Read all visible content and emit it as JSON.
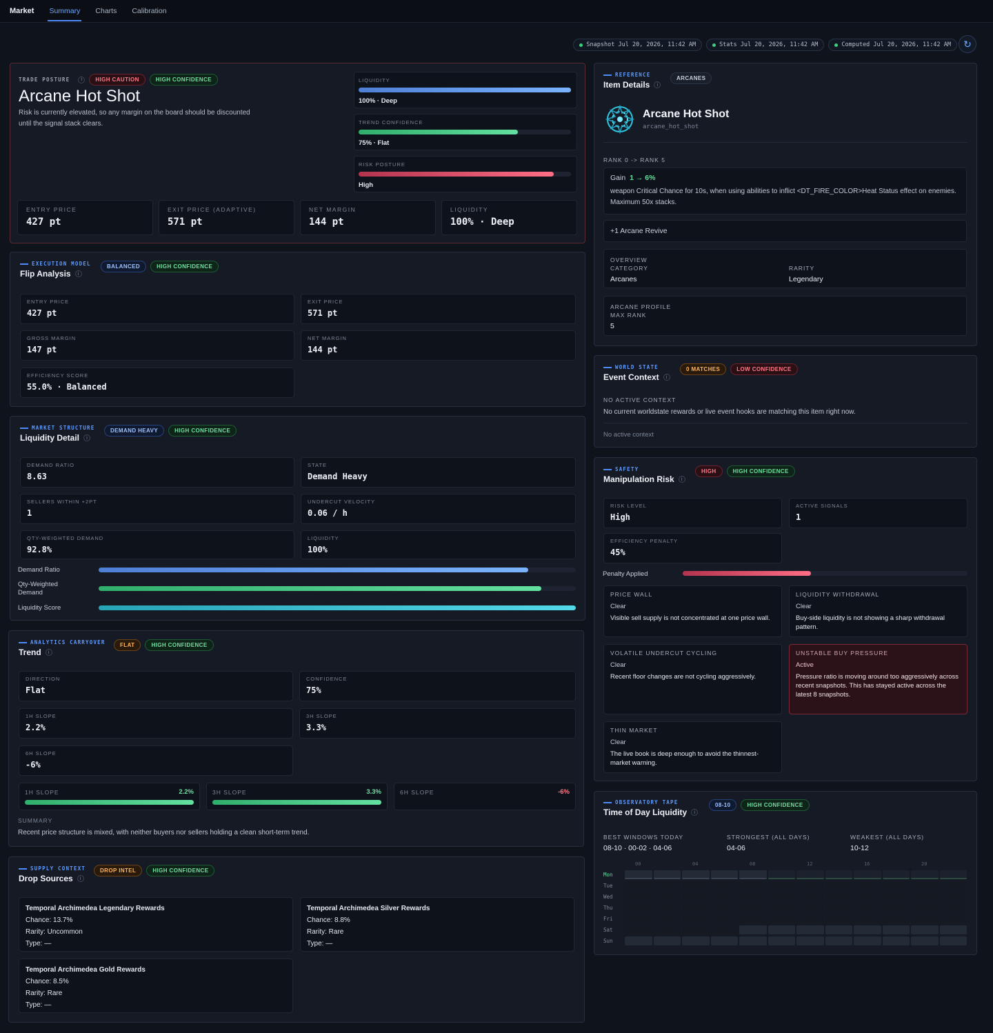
{
  "nav": {
    "brand": "Market",
    "tabs": [
      "Summary",
      "Charts",
      "Calibration"
    ]
  },
  "stamps": [
    "Snapshot Jul 20, 2026, 11:42 AM",
    "Stats Jul 20, 2026, 11:42 AM",
    "Computed Jul 20, 2026, 11:42 AM"
  ],
  "hero": {
    "eyebrow": "TRADE POSTURE",
    "badge1": "HIGH CAUTION",
    "badge2": "HIGH CONFIDENCE",
    "title": "Arcane Hot Shot",
    "desc1": "Risk is currently elevated, so any margin on the board should be discounted",
    "desc2": "until the signal stack clears.",
    "meters": [
      {
        "label": "LIQUIDITY",
        "value": "100% · Deep",
        "fraction": 1.0
      },
      {
        "label": "TREND CONFIDENCE",
        "value": "75% · Flat",
        "fraction": 0.75
      },
      {
        "label": "RISK POSTURE",
        "value": "High",
        "fraction": 0.92
      }
    ],
    "stats": [
      {
        "label": "ENTRY PRICE",
        "value": "427 pt"
      },
      {
        "label": "EXIT PRICE (ADAPTIVE)",
        "value": "571 pt"
      },
      {
        "label": "NET MARGIN",
        "value": "144 pt"
      },
      {
        "label": "LIQUIDITY",
        "value": "100% · Deep"
      }
    ]
  },
  "flip": {
    "eyebrow": "EXECUTION MODEL",
    "title": "Flip Analysis",
    "badge1": "BALANCED",
    "badge2": "HIGH CONFIDENCE",
    "cells": [
      {
        "label": "ENTRY PRICE",
        "value": "427 pt"
      },
      {
        "label": "EXIT PRICE",
        "value": "571 pt"
      },
      {
        "label": "GROSS MARGIN",
        "value": "147 pt"
      },
      {
        "label": "NET MARGIN",
        "value": "144 pt"
      },
      {
        "label": "EFFICIENCY SCORE",
        "value": "55.0% · Balanced"
      }
    ]
  },
  "liq": {
    "eyebrow": "MARKET STRUCTURE",
    "title": "Liquidity Detail",
    "badge1": "DEMAND HEAVY",
    "badge2": "HIGH CONFIDENCE",
    "cells": [
      {
        "label": "DEMAND RATIO",
        "value": "8.63"
      },
      {
        "label": "STATE",
        "value": "Demand Heavy"
      },
      {
        "label": "SELLERS WITHIN +2PT",
        "value": "1"
      },
      {
        "label": "UNDERCUT VELOCITY",
        "value": "0.06 / h"
      },
      {
        "label": "QTY-WEIGHTED DEMAND",
        "value": "92.8%"
      },
      {
        "label": "LIQUIDITY",
        "value": "100%"
      }
    ],
    "bars": [
      {
        "label": "Demand Ratio",
        "fraction": 0.9
      },
      {
        "label": "Qty-Weighted Demand",
        "fraction": 0.928
      },
      {
        "label": "Liquidity Score",
        "fraction": 1.0
      }
    ]
  },
  "trend": {
    "eyebrow": "ANALYTICS CARRYOVER",
    "title": "Trend",
    "badge1": "FLAT",
    "badge2": "HIGH CONFIDENCE",
    "cells": [
      {
        "label": "DIRECTION",
        "value": "Flat"
      },
      {
        "label": "CONFIDENCE",
        "value": "75%"
      },
      {
        "label": "1H SLOPE",
        "value": "2.2%"
      },
      {
        "label": "3H SLOPE",
        "value": "3.3%"
      },
      {
        "label": "6H SLOPE",
        "value": "-6%"
      }
    ],
    "slopes": [
      {
        "label": "1H SLOPE",
        "value": "2.2%",
        "fraction": 1.0
      },
      {
        "label": "3H SLOPE",
        "value": "3.3%",
        "fraction": 1.0
      },
      {
        "label": "6H SLOPE",
        "value": "-6%",
        "fraction": 0
      }
    ],
    "summary_label": "SUMMARY",
    "summary": "Recent price structure is mixed, with neither buyers nor sellers holding a clean short-term trend."
  },
  "drops": {
    "eyebrow": "SUPPLY CONTEXT",
    "title": "Drop Sources",
    "badge1": "DROP INTEL",
    "badge2": "HIGH CONFIDENCE",
    "items": [
      {
        "name": "Temporal Archimedea Legendary Rewards",
        "chance": "Chance: 13.7%",
        "rarity": "Rarity: Uncommon",
        "type": "Type: —"
      },
      {
        "name": "Temporal Archimedea Silver Rewards",
        "chance": "Chance: 8.8%",
        "rarity": "Rarity: Rare",
        "type": "Type: —"
      },
      {
        "name": "Temporal Archimedea Gold Rewards",
        "chance": "Chance: 8.5%",
        "rarity": "Rarity: Rare",
        "type": "Type: —"
      }
    ]
  },
  "item": {
    "eyebrow": "REFERENCE",
    "title": "Item Details",
    "badge": "ARCANES",
    "name": "Arcane Hot Shot",
    "slug": "arcane_hot_shot",
    "rank_range": "RANK 0 -> RANK 5",
    "gain_label": "Gain",
    "gain_value": "1 → 6%",
    "effect": "weapon Critical Chance for 10s, when using abilities to inflict <DT_FIRE_COLOR>Heat Status effect on enemies. Maximum 50x stacks.",
    "revive": "+1 Arcane Revive",
    "overview_label": "OVERVIEW",
    "category_label": "CATEGORY",
    "category": "Arcanes",
    "rarity_label": "RARITY",
    "rarity": "Legendary",
    "profile_label": "ARCANE PROFILE",
    "maxrank_label": "MAX RANK",
    "maxrank": "5"
  },
  "event": {
    "eyebrow": "WORLD STATE",
    "title": "Event Context",
    "badge1": "0 MATCHES",
    "badge2": "LOW CONFIDENCE",
    "head": "NO ACTIVE CONTEXT",
    "desc": "No current worldstate rewards or live event hooks are matching this item right now.",
    "note": "No active context"
  },
  "manip": {
    "eyebrow": "SAFETY",
    "title": "Manipulation Risk",
    "badge1": "HIGH",
    "badge2": "HIGH CONFIDENCE",
    "cells": [
      {
        "label": "RISK LEVEL",
        "value": "High"
      },
      {
        "label": "ACTIVE SIGNALS",
        "value": "1"
      },
      {
        "label": "EFFICIENCY PENALTY",
        "value": "45%"
      }
    ],
    "penalty_label": "Penalty Applied",
    "penalty_fraction": 0.45,
    "signals": [
      {
        "title": "PRICE WALL",
        "status": "Clear",
        "desc": "Visible sell supply is not concentrated at one price wall."
      },
      {
        "title": "LIQUIDITY WITHDRAWAL",
        "status": "Clear",
        "desc": "Buy-side liquidity is not showing a sharp withdrawal pattern."
      },
      {
        "title": "VOLATILE UNDERCUT CYCLING",
        "status": "Clear",
        "desc": "Recent floor changes are not cycling aggressively."
      },
      {
        "title": "UNSTABLE BUY PRESSURE",
        "status": "Active",
        "desc": "Pressure ratio is moving around too aggressively across recent snapshots. This has stayed active across the latest 8 snapshots."
      },
      {
        "title": "THIN MARKET",
        "status": "Clear",
        "desc": "The live book is deep enough to avoid the thinnest-market warning."
      }
    ]
  },
  "tod": {
    "eyebrow": "OBSERVATORY TAPE",
    "title": "Time of Day Liquidity",
    "badge1": "08-10",
    "badge2": "HIGH CONFIDENCE",
    "best_label": "BEST WINDOWS TODAY",
    "best": "08-10 · 00-02 · 04-06",
    "strong_label": "STRONGEST (ALL DAYS)",
    "strong": "04-06",
    "weak_label": "WEAKEST (ALL DAYS)",
    "weak": "10-12",
    "hours": [
      "00",
      "04",
      "08",
      "12",
      "16",
      "20"
    ],
    "days": [
      "Mon",
      "Tue",
      "Wed",
      "Thu",
      "Fri",
      "Sat",
      "Sun"
    ],
    "grid": [
      [
        3,
        3,
        3,
        3,
        3,
        2,
        2,
        2,
        2,
        2,
        2,
        2
      ],
      [
        1,
        1,
        1,
        1,
        1,
        1,
        1,
        1,
        1,
        1,
        1,
        1
      ],
      [
        1,
        1,
        1,
        1,
        1,
        1,
        1,
        1,
        1,
        1,
        1,
        1
      ],
      [
        1,
        1,
        1,
        1,
        1,
        1,
        1,
        1,
        1,
        1,
        1,
        1
      ],
      [
        1,
        1,
        1,
        1,
        1,
        1,
        1,
        1,
        1,
        1,
        1,
        1
      ],
      [
        1,
        1,
        1,
        1,
        3,
        3,
        3,
        3,
        3,
        3,
        3,
        3
      ],
      [
        3,
        3,
        3,
        3,
        3,
        3,
        3,
        3,
        3,
        3,
        3,
        3
      ]
    ]
  }
}
